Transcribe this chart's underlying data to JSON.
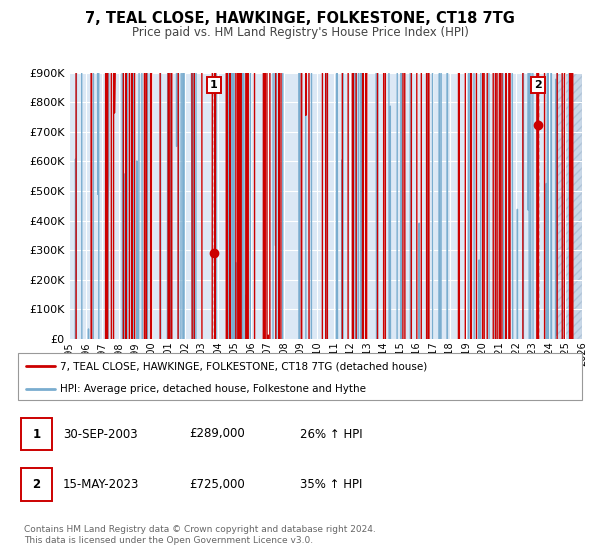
{
  "title": "7, TEAL CLOSE, HAWKINGE, FOLKESTONE, CT18 7TG",
  "subtitle": "Price paid vs. HM Land Registry's House Price Index (HPI)",
  "red_line_color": "#cc0000",
  "blue_line_color": "#7aadcf",
  "marker1_date_num": 2003.75,
  "marker2_date_num": 2023.37,
  "marker1_value": 289000,
  "marker2_value": 725000,
  "xmin": 1995,
  "xmax": 2026,
  "ymin": 0,
  "ymax": 900000,
  "yticks": [
    0,
    100000,
    200000,
    300000,
    400000,
    500000,
    600000,
    700000,
    800000,
    900000
  ],
  "ytick_labels": [
    "£0",
    "£100K",
    "£200K",
    "£300K",
    "£400K",
    "£500K",
    "£600K",
    "£700K",
    "£800K",
    "£900K"
  ],
  "xticks": [
    1995,
    1996,
    1997,
    1998,
    1999,
    2000,
    2001,
    2002,
    2003,
    2004,
    2005,
    2006,
    2007,
    2008,
    2009,
    2010,
    2011,
    2012,
    2013,
    2014,
    2015,
    2016,
    2017,
    2018,
    2019,
    2020,
    2021,
    2022,
    2023,
    2024,
    2025,
    2026
  ],
  "legend_label_red": "7, TEAL CLOSE, HAWKINGE, FOLKESTONE, CT18 7TG (detached house)",
  "legend_label_blue": "HPI: Average price, detached house, Folkestone and Hythe",
  "marker1_date_str": "30-SEP-2003",
  "marker2_date_str": "15-MAY-2023",
  "marker1_price_str": "£289,000",
  "marker2_price_str": "£725,000",
  "marker1_hpi_str": "26% ↑ HPI",
  "marker2_hpi_str": "35% ↑ HPI",
  "footer_text": "Contains HM Land Registry data © Crown copyright and database right 2024.\nThis data is licensed under the Open Government Licence v3.0.",
  "plot_bg": "#dce8f5",
  "hatch_bg": "#c8d8e8"
}
